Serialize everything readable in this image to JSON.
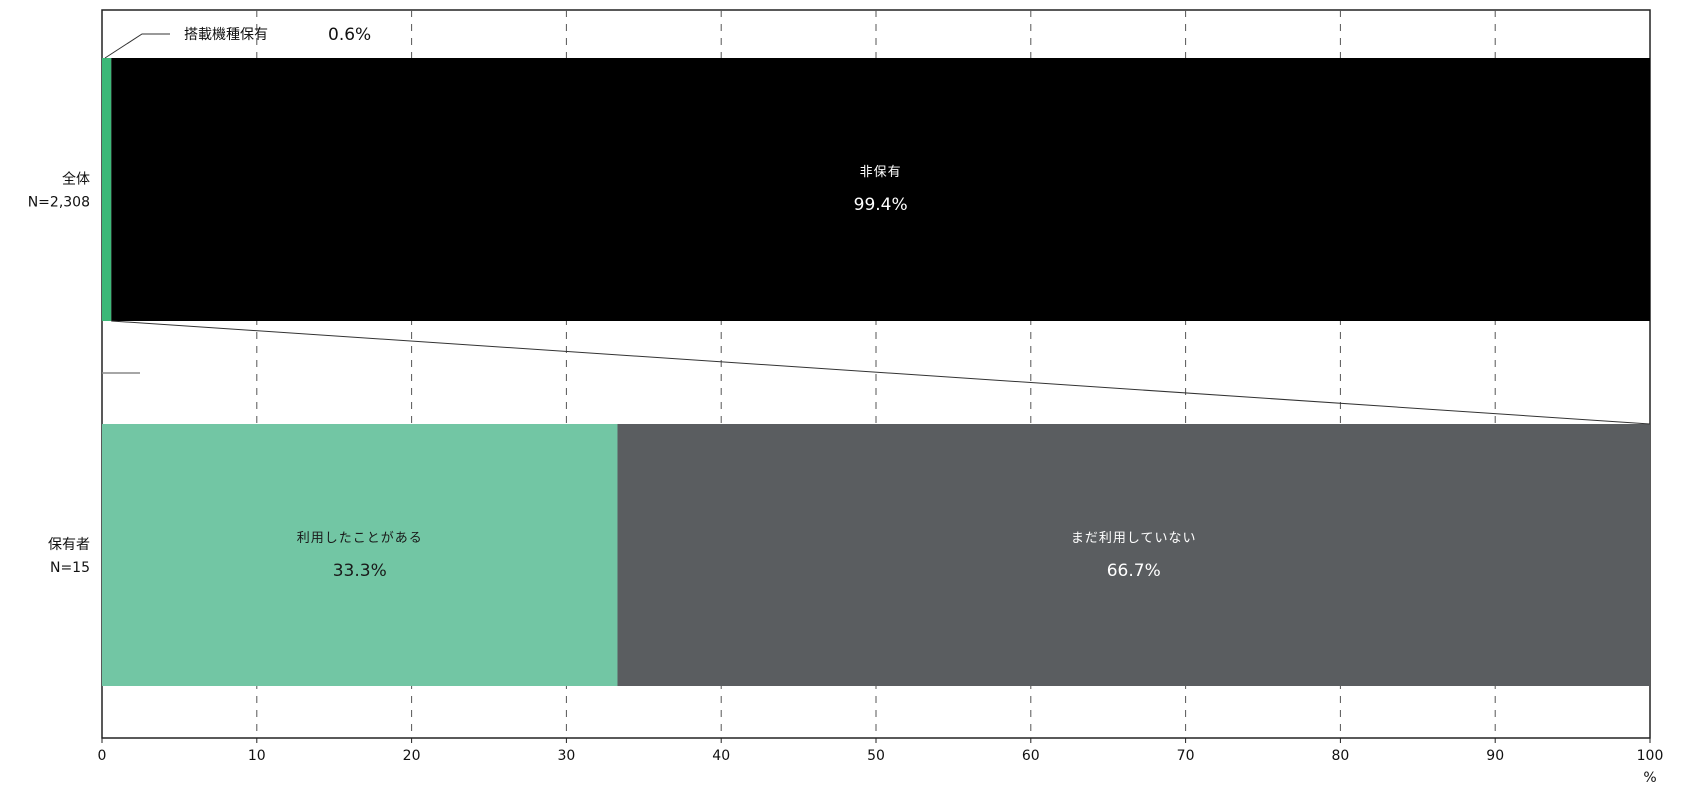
{
  "chart_data": {
    "type": "bar",
    "orientation": "horizontal",
    "stacked": true,
    "xlim": [
      0,
      100
    ],
    "x_ticks": [
      0,
      10,
      20,
      30,
      40,
      50,
      60,
      70,
      80,
      90,
      100
    ],
    "x_unit": "%",
    "grid": "vertical dashed",
    "rows": [
      {
        "label": "全体",
        "sublabel": "N=2,308",
        "segments": [
          {
            "name": "搭載機種保有",
            "value": 0.6,
            "value_label": "0.6%",
            "color": "#3cb878"
          },
          {
            "name": "非保有",
            "value": 99.4,
            "value_label": "99.4%",
            "color": "#000000"
          }
        ]
      },
      {
        "label": "保有者",
        "sublabel": "N=15",
        "segments": [
          {
            "name": "利用したことがある",
            "value": 33.3,
            "value_label": "33.3%",
            "color": "#72c6a4"
          },
          {
            "name": "まだ利用していない",
            "value": 66.7,
            "value_label": "66.7%",
            "color": "#5a5d60"
          }
        ]
      }
    ]
  }
}
